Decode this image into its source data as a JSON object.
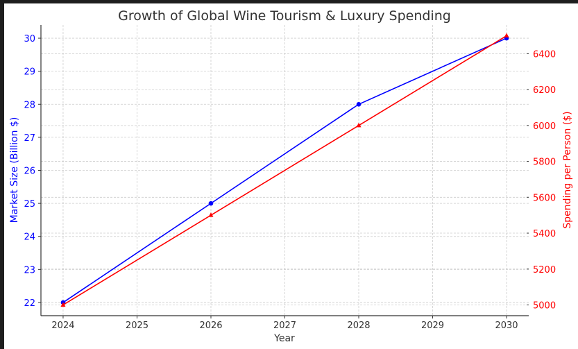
{
  "chart_data": {
    "type": "line",
    "title": "Growth of Global Wine Tourism & Luxury Spending",
    "xlabel": "Year",
    "ylabel": "Market Size (Billion $)",
    "ylabel_right": "Spending per Person ($)",
    "x": [
      2024,
      2026,
      2028,
      2030
    ],
    "xlim": [
      2023.7,
      2030.3
    ],
    "xticks": [
      2024,
      2025,
      2026,
      2027,
      2028,
      2029,
      2030
    ],
    "ylim": [
      21.6,
      30.4
    ],
    "yticks": [
      22,
      23,
      24,
      25,
      26,
      27,
      28,
      29,
      30
    ],
    "ylim_right": [
      4940,
      6560
    ],
    "yticks_right": [
      5000,
      5200,
      5400,
      5600,
      5800,
      6000,
      6200,
      6400
    ],
    "grid": true,
    "series": [
      {
        "name": "Market Size (Billion $)",
        "axis": "left",
        "color": "#0000ff",
        "marker": "circle",
        "values": [
          22,
          25,
          28,
          30
        ]
      },
      {
        "name": "Spending per Person ($)",
        "axis": "right",
        "color": "#ff0000",
        "marker": "triangle",
        "values": [
          5000,
          5500,
          6000,
          6500
        ]
      }
    ]
  }
}
